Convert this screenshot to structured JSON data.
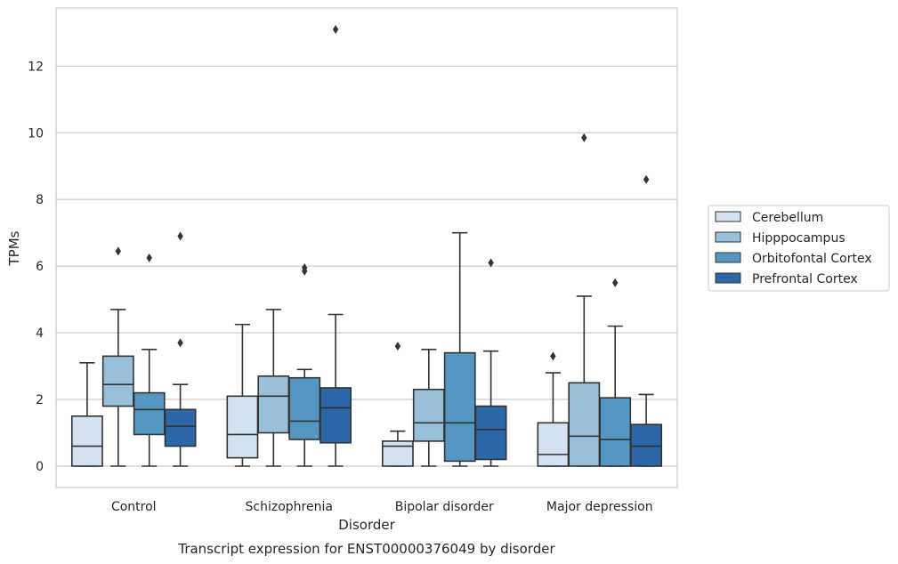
{
  "chart_data": {
    "type": "box",
    "title": "Transcript expression for ENST00000376049 by disorder",
    "xlabel": "Disorder",
    "ylabel": "TPMs",
    "ylim": [
      -0.6,
      13.8
    ],
    "yticks": [
      "0",
      "2",
      "4",
      "6",
      "8",
      "10",
      "12"
    ],
    "grid": "horizontal",
    "legend_position": "right",
    "categories": [
      "Control",
      "Schizophrenia",
      "Bipolar disorder",
      "Major depression"
    ],
    "series": [
      {
        "name": "Cerebellum",
        "color": "#d3e2f0",
        "boxes": [
          {
            "whislo": 0.0,
            "q1": 0.0,
            "med": 0.6,
            "q3": 1.5,
            "whishi": 3.1,
            "fliers": []
          },
          {
            "whislo": 0.0,
            "q1": 0.25,
            "med": 0.95,
            "q3": 2.1,
            "whishi": 4.25,
            "fliers": []
          },
          {
            "whislo": 0.0,
            "q1": 0.0,
            "med": 0.6,
            "q3": 0.75,
            "whishi": 1.05,
            "fliers": [
              3.6
            ]
          },
          {
            "whislo": 0.0,
            "q1": 0.0,
            "med": 0.35,
            "q3": 1.3,
            "whishi": 2.8,
            "fliers": [
              3.3
            ]
          }
        ]
      },
      {
        "name": "Hipppocampus",
        "color": "#98c0da",
        "boxes": [
          {
            "whislo": 0.0,
            "q1": 1.8,
            "med": 2.45,
            "q3": 3.3,
            "whishi": 4.7,
            "fliers": [
              6.45
            ]
          },
          {
            "whislo": 0.0,
            "q1": 1.0,
            "med": 2.1,
            "q3": 2.7,
            "whishi": 4.7,
            "fliers": []
          },
          {
            "whislo": 0.0,
            "q1": 0.75,
            "med": 1.3,
            "q3": 2.3,
            "whishi": 3.5,
            "fliers": []
          },
          {
            "whislo": 0.0,
            "q1": 0.0,
            "med": 0.9,
            "q3": 2.5,
            "whishi": 5.1,
            "fliers": [
              9.85
            ]
          }
        ]
      },
      {
        "name": "Orbitofontal Cortex",
        "color": "#5597c3",
        "boxes": [
          {
            "whislo": 0.0,
            "q1": 0.95,
            "med": 1.7,
            "q3": 2.2,
            "whishi": 3.5,
            "fliers": [
              6.25
            ]
          },
          {
            "whislo": 0.0,
            "q1": 0.8,
            "med": 1.35,
            "q3": 2.65,
            "whishi": 2.9,
            "fliers": [
              5.85,
              5.95
            ]
          },
          {
            "whislo": 0.0,
            "q1": 0.15,
            "med": 1.3,
            "q3": 3.4,
            "whishi": 7.0,
            "fliers": []
          },
          {
            "whislo": 0.0,
            "q1": 0.0,
            "med": 0.8,
            "q3": 2.05,
            "whishi": 4.2,
            "fliers": [
              5.5
            ]
          }
        ]
      },
      {
        "name": "Prefrontal Cortex",
        "color": "#2c67a8",
        "boxes": [
          {
            "whislo": 0.0,
            "q1": 0.6,
            "med": 1.2,
            "q3": 1.7,
            "whishi": 2.45,
            "fliers": [
              3.7,
              6.9
            ]
          },
          {
            "whislo": 0.0,
            "q1": 0.7,
            "med": 1.75,
            "q3": 2.35,
            "whishi": 4.55,
            "fliers": [
              13.1
            ]
          },
          {
            "whislo": 0.0,
            "q1": 0.2,
            "med": 1.1,
            "q3": 1.8,
            "whishi": 3.45,
            "fliers": [
              6.1
            ]
          },
          {
            "whislo": 0.0,
            "q1": 0.0,
            "med": 0.6,
            "q3": 1.25,
            "whishi": 2.15,
            "fliers": [
              8.6
            ]
          }
        ]
      }
    ]
  }
}
